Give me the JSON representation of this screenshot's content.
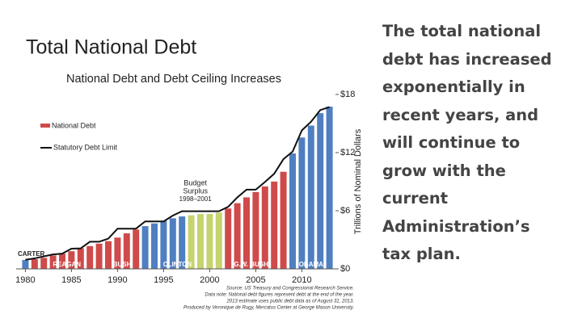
{
  "slide_title": "Total National Debt",
  "body_text": "The total national debt has increased exponentially in recent years, and will continue to grow with the current Administration’s tax plan.",
  "chart_data": {
    "type": "bar",
    "title": "National Debt and Debt Ceiling Increases",
    "y_label": "Trillions of Nominal Dollars",
    "x": [
      1980,
      1981,
      1982,
      1983,
      1984,
      1985,
      1986,
      1987,
      1988,
      1989,
      1990,
      1991,
      1992,
      1993,
      1994,
      1995,
      1996,
      1997,
      1998,
      1999,
      2000,
      2001,
      2002,
      2003,
      2004,
      2005,
      2006,
      2007,
      2008,
      2009,
      2010,
      2011,
      2012,
      2013
    ],
    "series": [
      {
        "name": "National Debt",
        "color": "#cf4a4a",
        "values": [
          0.91,
          1.0,
          1.14,
          1.38,
          1.57,
          1.82,
          2.13,
          2.35,
          2.6,
          2.86,
          3.23,
          3.67,
          4.06,
          4.41,
          4.69,
          4.97,
          5.22,
          5.41,
          5.53,
          5.66,
          5.67,
          5.81,
          6.23,
          6.78,
          7.38,
          7.93,
          8.51,
          9.01,
          10.02,
          11.91,
          13.56,
          14.79,
          16.07,
          16.74
        ]
      },
      {
        "name": "Statutory Debt Limit",
        "color": "#111111",
        "type": "line",
        "values": [
          0.935,
          1.08,
          1.29,
          1.49,
          1.57,
          2.08,
          2.11,
          2.8,
          2.8,
          3.12,
          4.15,
          4.15,
          4.15,
          4.9,
          4.9,
          4.9,
          5.5,
          5.95,
          5.95,
          5.95,
          5.95,
          5.95,
          6.4,
          7.38,
          8.18,
          8.18,
          8.97,
          9.82,
          11.32,
          12.1,
          14.29,
          15.19,
          16.39,
          16.7
        ]
      }
    ],
    "eras": [
      {
        "name": "CARTER",
        "start": 1977,
        "end": 1980,
        "color": "#4f7fc0"
      },
      {
        "name": "REAGAN",
        "start": 1981,
        "end": 1988,
        "color": "#cf4a4a"
      },
      {
        "name": "BUSH",
        "start": 1989,
        "end": 1992,
        "color": "#cf4a4a"
      },
      {
        "name": "CLINTON",
        "start": 1993,
        "end": 2000,
        "color": "#4f7fc0"
      },
      {
        "name": "G.W. BUSH",
        "start": 2001,
        "end": 2008,
        "color": "#cf4a4a"
      },
      {
        "name": "OBAMA",
        "start": 2009,
        "end": 2013,
        "color": "#4f7fc0"
      }
    ],
    "surplus": {
      "labels": [
        "Budget",
        "Surplus",
        "1998–2001"
      ],
      "start": 1998,
      "end": 2001,
      "color": "#c6d36e"
    },
    "xlim": [
      1979,
      2014
    ],
    "xticks": [
      1980,
      1985,
      1990,
      1995,
      2000,
      2005,
      2010
    ],
    "ylim": [
      0,
      18.5
    ],
    "yticks": [
      {
        "value": 0,
        "label": "$0"
      },
      {
        "value": 6,
        "label": "$6"
      },
      {
        "value": 12,
        "label": "$12"
      },
      {
        "value": 18,
        "label": "$18"
      }
    ],
    "source": [
      "Source: US Treasury and Congressional Research Service.",
      "Data note: National debt figures represent debt at the end of the year.",
      "2013 estimate uses public debt data as of August 31, 2013.",
      "Produced by Veronique de Rugy, Mercatus Center at George Mason University."
    ]
  }
}
